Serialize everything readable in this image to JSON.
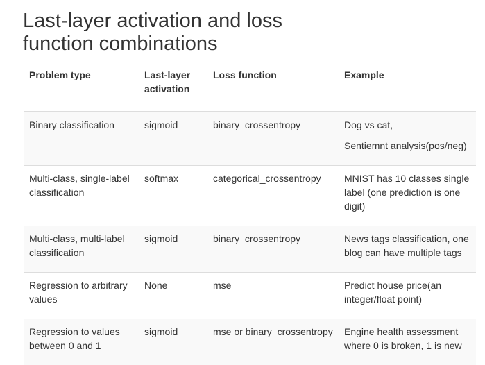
{
  "title": "Last-layer activation and loss function combinations",
  "table": {
    "headers": {
      "problem_type": "Problem type",
      "activation": "Last-layer activation",
      "loss": "Loss function",
      "example": "Example"
    },
    "rows": [
      {
        "problem_type": "Binary classification",
        "activation": "sigmoid",
        "loss": "binary_crossentropy",
        "example_lines": [
          "Dog vs cat,",
          "Sentiemnt analysis(pos/neg)"
        ]
      },
      {
        "problem_type": "Multi-class, single-label classification",
        "activation": "softmax",
        "loss": "categorical_crossentropy",
        "example_lines": [
          "MNIST has 10 classes single label (one prediction is one digit)"
        ]
      },
      {
        "problem_type": "Multi-class, multi-label classification",
        "activation": "sigmoid",
        "loss": "binary_crossentropy",
        "example_lines": [
          "News tags classification, one blog can have multiple tags"
        ]
      },
      {
        "problem_type": "Regression to arbitrary values",
        "activation": "None",
        "loss": "mse",
        "example_lines": [
          "Predict house price(an integer/float point)"
        ]
      },
      {
        "problem_type": "Regression to values between 0 and 1",
        "activation": "sigmoid",
        "loss": "mse or binary_crossentropy",
        "example_lines": [
          "Engine health assessment where 0 is broken, 1 is new"
        ]
      }
    ]
  }
}
